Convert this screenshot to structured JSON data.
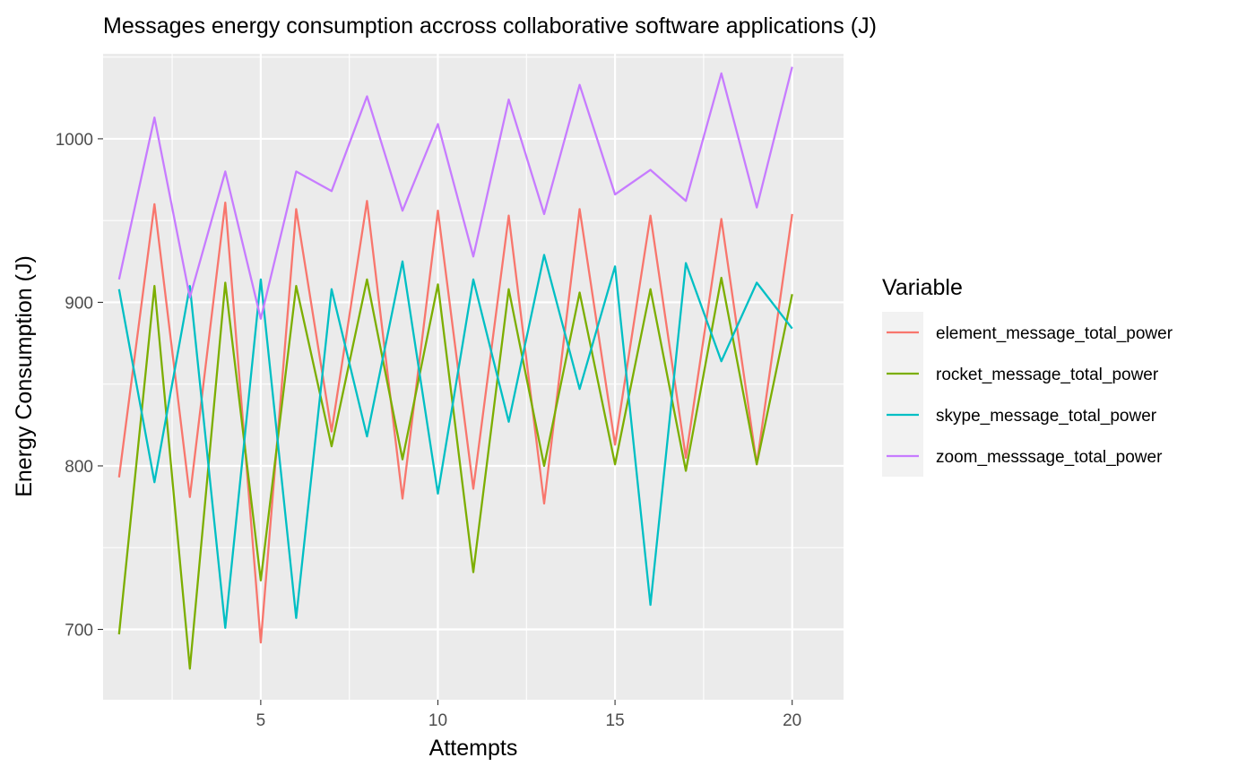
{
  "chart_data": {
    "type": "line",
    "title": "Messages energy consumption accross collaborative software applications (J)",
    "xlabel": "Attempts",
    "ylabel": "Energy Consumption (J)",
    "xlim": [
      0.55,
      21.45
    ],
    "ylim": [
      657,
      1052
    ],
    "x_ticks": [
      5,
      10,
      15,
      20
    ],
    "y_ticks": [
      700,
      800,
      900,
      1000
    ],
    "grid": true,
    "legend_title": "Variable",
    "legend_position": "right",
    "x": [
      1,
      2,
      3,
      4,
      5,
      6,
      7,
      8,
      9,
      10,
      11,
      12,
      13,
      14,
      15,
      16,
      17,
      18,
      19,
      20
    ],
    "series": [
      {
        "name": "element_message_total_power",
        "color": "#F8766D",
        "values": [
          793,
          960,
          781,
          961,
          692,
          957,
          821,
          962,
          780,
          956,
          786,
          953,
          777,
          957,
          813,
          953,
          805,
          951,
          801,
          954
        ]
      },
      {
        "name": "rocket_message_total_power",
        "color": "#7CAE00",
        "values": [
          697,
          910,
          676,
          912,
          730,
          910,
          812,
          914,
          804,
          911,
          735,
          908,
          800,
          906,
          801,
          908,
          797,
          915,
          801,
          905
        ]
      },
      {
        "name": "skype_message_total_power",
        "color": "#00BFC4",
        "values": [
          908,
          790,
          910,
          701,
          914,
          707,
          908,
          818,
          925,
          783,
          914,
          827,
          929,
          847,
          922,
          715,
          924,
          864,
          912,
          884
        ]
      },
      {
        "name": "zoom_messsage_total_power",
        "color": "#C77CFF",
        "values": [
          914,
          1013,
          903,
          980,
          890,
          980,
          968,
          1026,
          956,
          1009,
          928,
          1024,
          954,
          1033,
          966,
          981,
          962,
          1040,
          958,
          1044
        ]
      }
    ]
  }
}
